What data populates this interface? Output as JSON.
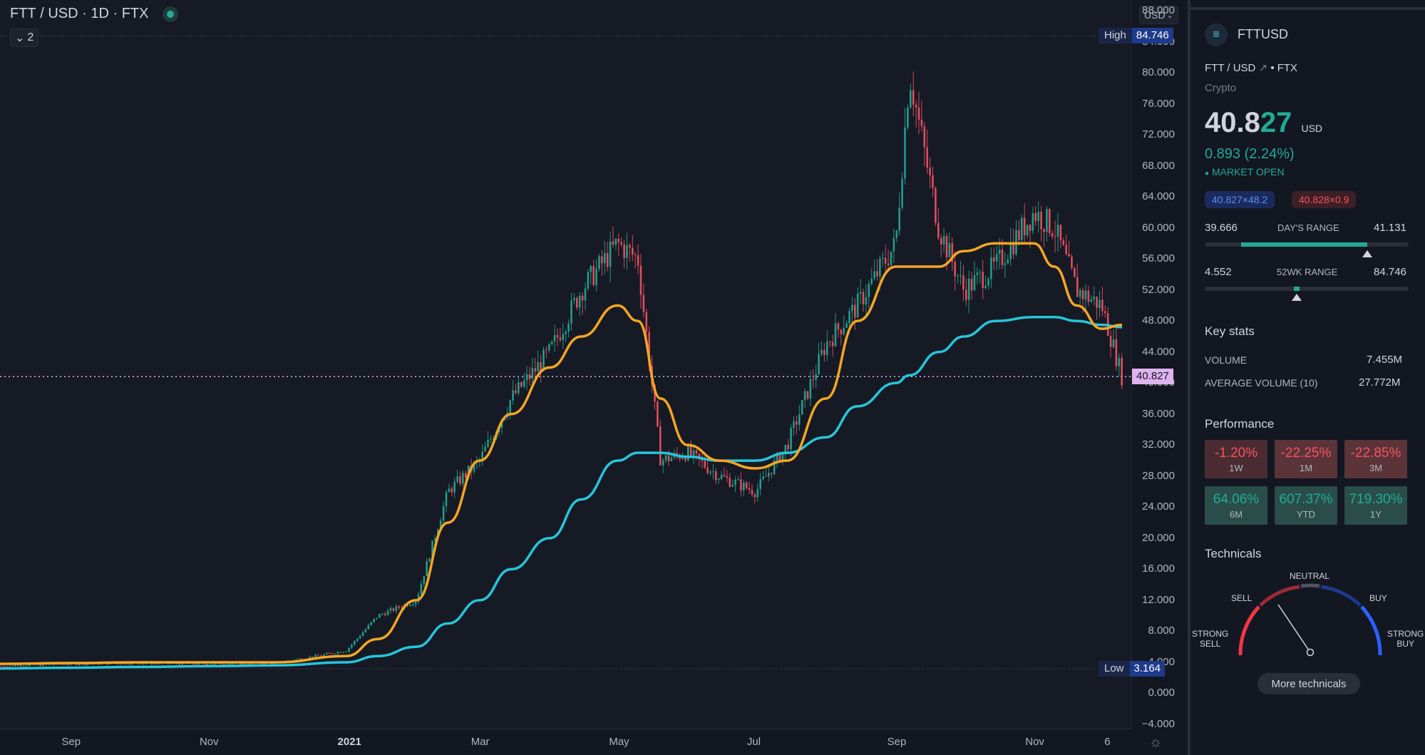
{
  "header": {
    "symbol": "FTT",
    "sep1": " / ",
    "quote": "USD",
    "sep2": " · ",
    "interval": "1D",
    "sep3": " · ",
    "exchange": "FTX",
    "indicator_count": "2",
    "currency": "USD"
  },
  "chart": {
    "high_label": "High",
    "high_value": "84.746",
    "low_label": "Low",
    "low_value": "3.164",
    "last_price": "40.827",
    "y_ticks": [
      "88.000",
      "84.000",
      "80.000",
      "76.000",
      "72.000",
      "68.000",
      "64.000",
      "60.000",
      "56.000",
      "52.000",
      "48.000",
      "44.000",
      "40.000",
      "36.000",
      "32.000",
      "28.000",
      "24.000",
      "20.000",
      "16.000",
      "12.000",
      "8.000",
      "4.000",
      "0.000",
      "−4.000"
    ],
    "x_ticks": [
      "Sep",
      "Nov",
      "2021",
      "Mar",
      "May",
      "Jul",
      "Sep",
      "Nov",
      "6"
    ],
    "x_ticks_bold": [
      false,
      false,
      true,
      false,
      false,
      false,
      false,
      false,
      false
    ]
  },
  "chart_data": {
    "type": "line",
    "title": "FTT / USD · 1D · FTX",
    "xlabel": "",
    "ylabel": "",
    "ylim": [
      -4,
      88
    ],
    "grid": false,
    "x": [
      "2020-08-01",
      "2020-09-01",
      "2020-10-01",
      "2020-11-01",
      "2020-12-01",
      "2021-01-01",
      "2021-01-15",
      "2021-02-01",
      "2021-02-15",
      "2021-03-01",
      "2021-03-15",
      "2021-04-01",
      "2021-04-15",
      "2021-05-01",
      "2021-05-10",
      "2021-05-20",
      "2021-06-01",
      "2021-06-15",
      "2021-07-01",
      "2021-07-15",
      "2021-08-01",
      "2021-08-15",
      "2021-09-01",
      "2021-09-07",
      "2021-09-20",
      "2021-10-01",
      "2021-10-15",
      "2021-11-01",
      "2021-11-10",
      "2021-11-20",
      "2021-12-01",
      "2021-12-10"
    ],
    "series": [
      {
        "name": "",
        "color": "#ffffff",
        "values": [
          3.5,
          3.8,
          3.9,
          3.8,
          3.9,
          5.5,
          10,
          12,
          26,
          30,
          38,
          44,
          52,
          58,
          56,
          30,
          31,
          28,
          26,
          32,
          45,
          50,
          58,
          80,
          60,
          52,
          55,
          62,
          60,
          52,
          50,
          40.8
        ]
      },
      {
        "name": "",
        "color": "#f5a623",
        "values": [
          3.8,
          3.9,
          4.0,
          4.0,
          4.0,
          4.8,
          7,
          12,
          22,
          30,
          36,
          42,
          46,
          50,
          48,
          38,
          32,
          30,
          29,
          30,
          38,
          48,
          55,
          55,
          55,
          57,
          58,
          58,
          55,
          50,
          47,
          47.5
        ]
      },
      {
        "name": "",
        "color": "#26c6da",
        "values": [
          3.2,
          3.3,
          3.4,
          3.5,
          3.6,
          4,
          4.8,
          6,
          9,
          12,
          16,
          20,
          25,
          30,
          31,
          31,
          30.5,
          30,
          30,
          31,
          33,
          37,
          40,
          41,
          44,
          46,
          48,
          48.5,
          48.5,
          48,
          47.5,
          47.2
        ]
      }
    ],
    "high": 84.746,
    "low": 3.164,
    "last": 40.827
  },
  "side": {
    "ticker": "FTTUSD",
    "pair": "FTT / USD",
    "exchange_suffix": " • FTX",
    "category": "Crypto",
    "price_main": "40.8",
    "price_hl": "27",
    "price_unit": "USD",
    "change": "0.893 (2.24%)",
    "market_status": "MARKET OPEN",
    "bid": "40.827×48.2",
    "ask": "40.828×0.9",
    "day_range_low": "39.666",
    "day_range_label": "DAY'S RANGE",
    "day_range_high": "41.131",
    "day_range_pos": 0.797,
    "wk52_low": "4.552",
    "wk52_label": "52WK RANGE",
    "wk52_high": "84.746",
    "wk52_pos": 0.452,
    "key_stats_title": "Key stats",
    "volume_label": "VOLUME",
    "volume_value": "7.455M",
    "avgvol_label": "AVERAGE VOLUME (10)",
    "avgvol_value": "27.772M",
    "performance_title": "Performance",
    "performance": [
      {
        "value": "-1.20%",
        "label": "1W"
      },
      {
        "value": "-22.25%",
        "label": "1M"
      },
      {
        "value": "-22.85%",
        "label": "3M"
      },
      {
        "value": "64.06%",
        "label": "6M"
      },
      {
        "value": "607.37%",
        "label": "YTD"
      },
      {
        "value": "719.30%",
        "label": "1Y"
      }
    ],
    "technicals_title": "Technicals",
    "gauge": {
      "neutral": "NEUTRAL",
      "sell": "SELL",
      "buy": "BUY",
      "strong_sell": "STRONG\nSELL",
      "strong_buy": "STRONG\nBUY",
      "needle": "sell"
    },
    "more_technicals": "More technicals"
  },
  "colors": {
    "background": "#161a25",
    "up": "#22ab94",
    "down": "#f7525f",
    "ma_fast": "#f5a623",
    "ma_slow": "#26c6da"
  }
}
